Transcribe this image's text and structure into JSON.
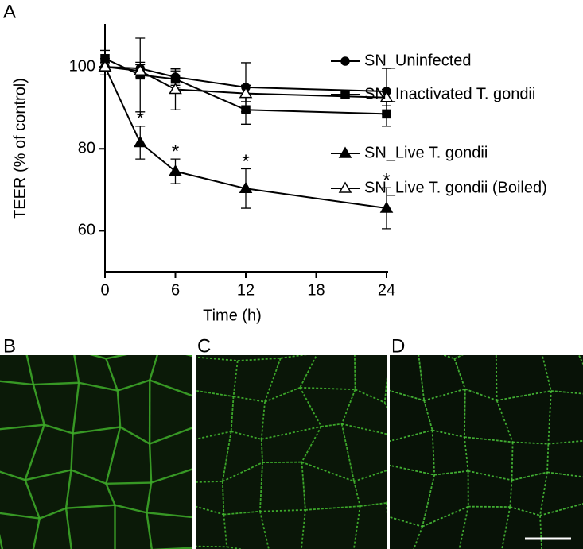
{
  "panel_labels": {
    "a": "A",
    "b": "B",
    "c": "C",
    "d": "D"
  },
  "chart_data": {
    "type": "line",
    "xlabel": "Time (h)",
    "ylabel": "TEER (% of control)",
    "x": [
      0,
      3,
      6,
      12,
      24
    ],
    "xlim": [
      0,
      24
    ],
    "xticks": [
      0,
      6,
      12,
      18,
      24
    ],
    "ylim": [
      50,
      110
    ],
    "yticks": [
      60,
      80,
      100
    ],
    "grid": false,
    "legend": "right",
    "series": [
      {
        "name": "SN_Uninfected",
        "color": "#000000",
        "marker": "circle",
        "values": [
          100,
          99.6,
          97.5,
          95,
          94
        ],
        "errors": [
          2,
          1.5,
          2,
          6,
          5.6
        ]
      },
      {
        "name": "SN_Inactivated T. gondii",
        "color": "#000000",
        "marker": "square",
        "values": [
          102,
          98,
          97,
          89.5,
          88.5
        ],
        "errors": [
          2,
          9,
          2,
          3.5,
          3
        ]
      },
      {
        "name": "SN_Live T. gondii",
        "color": "#000000",
        "marker": "triangle",
        "values": [
          100,
          81.5,
          74.5,
          70.3,
          65.5
        ],
        "errors": [
          1,
          4,
          3,
          4.8,
          5
        ]
      },
      {
        "name": "SN_Live T. gondii (Boiled)",
        "color": "#000000",
        "marker": "triangle-open",
        "values": [
          100,
          99,
          94.5,
          93.5,
          92.5
        ],
        "errors": [
          1,
          1.5,
          5,
          2,
          2
        ]
      }
    ],
    "annotations": [
      {
        "text": "*",
        "x": 3,
        "series": 2
      },
      {
        "text": "*",
        "x": 6,
        "series": 2
      },
      {
        "text": "*",
        "x": 12,
        "series": 2
      },
      {
        "text": "*",
        "x": 24,
        "series": 2
      }
    ]
  }
}
